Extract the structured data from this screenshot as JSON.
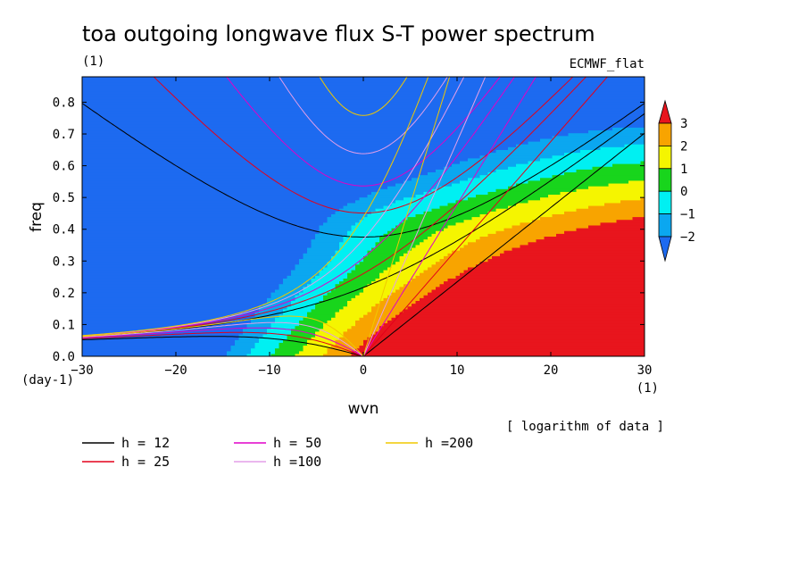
{
  "chart_data": {
    "type": "heatmap",
    "title": "toa outgoing longwave flux S-T power spectrum",
    "units_label": "(1)",
    "source_label": "ECMWF_flat",
    "xlabel": "wvn",
    "ylabel": "freq",
    "x_unit_label": "(1)",
    "y_unit_label": "(day-1)",
    "xlim": [
      -30,
      30
    ],
    "ylim": [
      0.0,
      0.88
    ],
    "xticks": [
      "-30",
      "-20",
      "-10",
      "0",
      "10",
      "20",
      "30"
    ],
    "yticks": [
      "0.0",
      "0.1",
      "0.2",
      "0.3",
      "0.4",
      "0.5",
      "0.6",
      "0.7",
      "0.8"
    ],
    "note": "[ logarithm of data ]",
    "colorbar": {
      "tick_labels": [
        "3",
        "2",
        "1",
        "0",
        "−1",
        "−2"
      ],
      "levels": [
        {
          "range": "> 3",
          "color": "#e8151d"
        },
        {
          "range": "2 to 3",
          "color": "#f8a400"
        },
        {
          "range": "1 to 2",
          "color": "#f5f500"
        },
        {
          "range": "0 to 1",
          "color": "#18d51c"
        },
        {
          "range": "-1 to 0",
          "color": "#00f0f2"
        },
        {
          "range": "-2 to -1",
          "color": "#0ba7f0"
        },
        {
          "range": "< -2",
          "color": "#1d6af0"
        }
      ]
    },
    "series": [
      {
        "name": "h = 12",
        "h": 12,
        "color": "#000000"
      },
      {
        "name": "h = 25",
        "h": 25,
        "color": "#e3001b"
      },
      {
        "name": "h = 50",
        "h": 50,
        "color": "#e000c8"
      },
      {
        "name": "h =100",
        "h": 100,
        "color": "#e49fe8"
      },
      {
        "name": "h =200",
        "h": 200,
        "color": "#f0c800"
      }
    ]
  }
}
